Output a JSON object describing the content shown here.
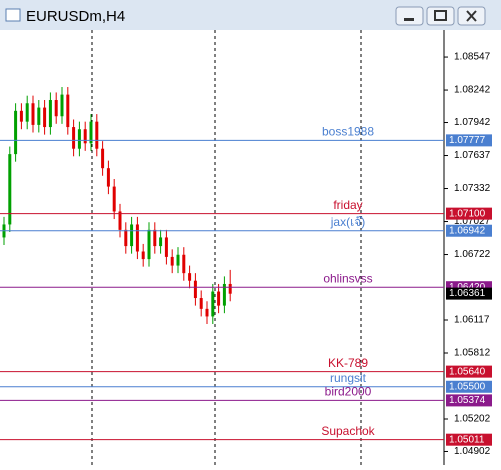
{
  "window": {
    "title": "EURUSDm,H4"
  },
  "chart_data": {
    "type": "candlestick",
    "ylim": [
      1.04777,
      1.08797
    ],
    "yticks": [
      1.08547,
      1.08242,
      1.07942,
      1.07637,
      1.07332,
      1.07027,
      1.06722,
      1.06117,
      1.05812,
      1.05202,
      1.04902
    ],
    "up_color": "#00a000",
    "down_color": "#e00000",
    "open": [
      1.0688,
      1.07,
      1.0765,
      1.0805,
      1.0795,
      1.0812,
      1.0792,
      1.0808,
      1.079,
      1.0815,
      1.08,
      1.082,
      1.079,
      1.077,
      1.0788,
      1.0775,
      1.0795,
      1.077,
      1.0752,
      1.0735,
      1.0712,
      1.0695,
      1.068,
      1.07,
      1.0675,
      1.0668,
      1.0695,
      1.068,
      1.0688,
      1.067,
      1.0662,
      1.0672,
      1.0655,
      1.0648,
      1.0632,
      1.0622,
      1.0615,
      1.0638,
      1.0625,
      1.0645
    ],
    "high": [
      1.0707,
      1.0772,
      1.0812,
      1.0812,
      1.0819,
      1.0819,
      1.0815,
      1.0815,
      1.0822,
      1.0822,
      1.0827,
      1.0827,
      1.0797,
      1.0795,
      1.0795,
      1.0802,
      1.0802,
      1.0777,
      1.0759,
      1.0742,
      1.0719,
      1.0702,
      1.0707,
      1.0707,
      1.0682,
      1.0702,
      1.0702,
      1.0695,
      1.0695,
      1.0677,
      1.0679,
      1.0679,
      1.0662,
      1.0655,
      1.0639,
      1.0629,
      1.0645,
      1.0645,
      1.0652,
      1.0658
    ],
    "low": [
      1.0681,
      1.0693,
      1.0758,
      1.0788,
      1.0788,
      1.0785,
      1.0785,
      1.0783,
      1.0783,
      1.0793,
      1.0793,
      1.0783,
      1.0763,
      1.0763,
      1.0768,
      1.0768,
      1.0763,
      1.0745,
      1.0728,
      1.0705,
      1.0688,
      1.0673,
      1.0673,
      1.0668,
      1.0661,
      1.0661,
      1.0673,
      1.0673,
      1.0663,
      1.0655,
      1.0655,
      1.0648,
      1.0641,
      1.0625,
      1.0615,
      1.0608,
      1.0608,
      1.0618,
      1.0618,
      1.0629
    ],
    "close": [
      1.07,
      1.0765,
      1.0805,
      1.0795,
      1.0812,
      1.0792,
      1.0808,
      1.079,
      1.0815,
      1.08,
      1.082,
      1.079,
      1.077,
      1.0788,
      1.0775,
      1.0795,
      1.077,
      1.0752,
      1.0735,
      1.0712,
      1.0695,
      1.068,
      1.07,
      1.0675,
      1.0668,
      1.0695,
      1.068,
      1.0688,
      1.067,
      1.0662,
      1.0672,
      1.0655,
      1.0648,
      1.0632,
      1.0622,
      1.0615,
      1.0638,
      1.0625,
      1.0645,
      1.0636
    ],
    "current_price": 1.06361,
    "levels": [
      {
        "name": "boss1988",
        "value": 1.07777,
        "color": "#4a7fd0"
      },
      {
        "name": "friday",
        "value": 1.071,
        "value_label": "1.07100",
        "color": "#c8102e"
      },
      {
        "name": "jax(เจ๊)",
        "value": 1.06942,
        "color": "#4a7fd0"
      },
      {
        "name": "ohlinsvss",
        "value": 1.0642,
        "value_label": "1.06420",
        "color": "#8b1a8b"
      },
      {
        "name": "KK-789",
        "value": 1.0564,
        "value_label": "1.05640",
        "color": "#c8102e"
      },
      {
        "name": "rungsit",
        "value": 1.055,
        "value_label": "1.05500",
        "color": "#4a7fd0"
      },
      {
        "name": "bird2000",
        "value": 1.05374,
        "color": "#8b1a8b"
      },
      {
        "name": "Supachok",
        "value": 1.05011,
        "color": "#c8102e"
      }
    ]
  }
}
